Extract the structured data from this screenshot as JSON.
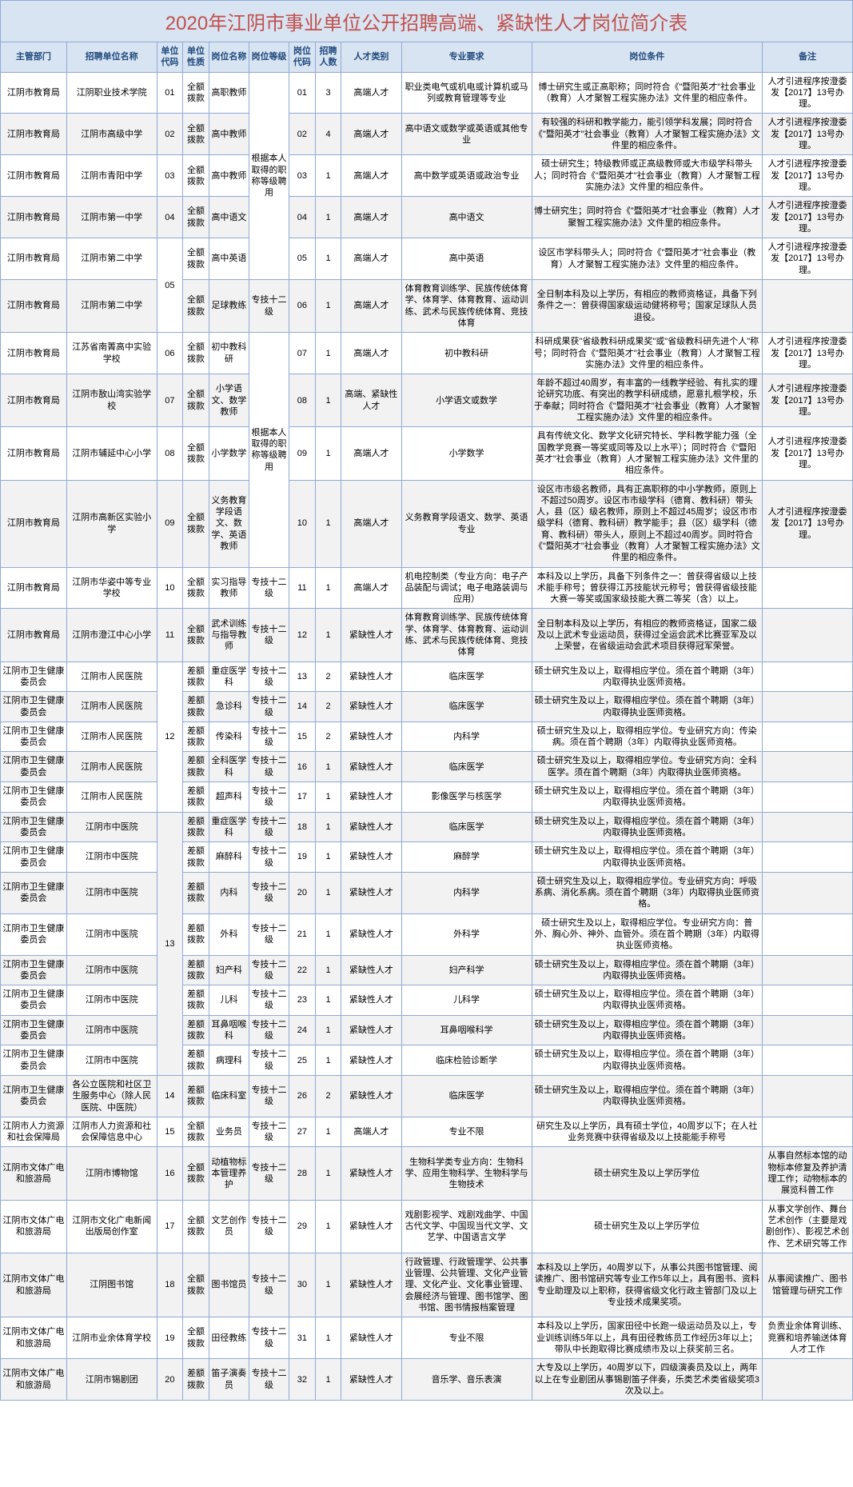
{
  "title": "2020年江阴市事业单位公开招聘高端、紧缺性人才岗位简介表",
  "headers": [
    "主管部门",
    "招聘单位名称",
    "单位代码",
    "单位性质",
    "岗位名称",
    "岗位等级",
    "岗位代码",
    "招聘人数",
    "人才类别",
    "专业要求",
    "岗位条件",
    "备注"
  ],
  "levels": {
    "a": "根据本人取得的职称等级聘用",
    "b": "根据本人取得的职称等级聘用"
  },
  "rows": [
    {
      "dept": "江阴市教育局",
      "unit": "江阴职业技术学院",
      "ucode": "01",
      "nature": "全额拨款",
      "pname": "高职教师",
      "pcode": "01",
      "num": "3",
      "talent": "高端人才",
      "major": "职业类电气或机电或计算机或马列或教育管理等专业",
      "cond": "博士研究生或正高职称；同时符合《\"暨阳英才\"社会事业（教育）人才聚智工程实施办法》文件里的相应条件。",
      "remark": "人才引进程序按澄委发【2017】13号办理。"
    },
    {
      "dept": "江阴市教育局",
      "unit": "江阴市高级中学",
      "ucode": "02",
      "nature": "全额拨款",
      "pname": "高中教师",
      "pcode": "02",
      "num": "4",
      "talent": "高端人才",
      "major": "高中语文或数学或英语或其他专业",
      "cond": "有较强的科研和教学能力，能引领学科发展；同时符合《\"暨阳英才\"社会事业（教育）人才聚智工程实施办法》文件里的相应条件。",
      "remark": "人才引进程序按澄委发【2017】13号办理。"
    },
    {
      "dept": "江阴市教育局",
      "unit": "江阴市青阳中学",
      "ucode": "03",
      "nature": "全额拨款",
      "pname": "高中教师",
      "pcode": "03",
      "num": "1",
      "talent": "高端人才",
      "major": "高中数学或英语或政治专业",
      "cond": "硕士研究生；特级教师或正高级教师或大市级学科带头人；同时符合《\"暨阳英才\"社会事业（教育）人才聚智工程实施办法》文件里的相应条件。",
      "remark": "人才引进程序按澄委发【2017】13号办理。"
    },
    {
      "dept": "江阴市教育局",
      "unit": "江阴市第一中学",
      "ucode": "04",
      "nature": "全额拨款",
      "pname": "高中语文",
      "pcode": "04",
      "num": "1",
      "talent": "高端人才",
      "major": "高中语文",
      "cond": "博士研究生；同时符合《\"暨阳英才\"社会事业（教育）人才聚智工程实施办法》文件里的相应条件。",
      "remark": "人才引进程序按澄委发【2017】13号办理。"
    },
    {
      "dept": "江阴市教育局",
      "unit": "江阴市第二中学",
      "ucode": "05",
      "nature": "全额拨款",
      "pname": "高中英语",
      "pcode": "05",
      "num": "1",
      "talent": "高端人才",
      "major": "高中英语",
      "cond": "设区市学科带头人；同时符合《\"暨阳英才\"社会事业（教育）人才聚智工程实施办法》文件里的相应条件。",
      "remark": "人才引进程序按澄委发【2017】13号办理。"
    },
    {
      "dept": "江阴市教育局",
      "unit": "江阴市第二中学",
      "ucode": "05",
      "nature": "全额拨款",
      "pname": "足球教练",
      "plevel": "专技十二级",
      "pcode": "06",
      "num": "1",
      "talent": "高端人才",
      "major": "体育教育训练学、民族传统体育学、体育学、体育教育、运动训练、武术与民族传统体育、竞技体育",
      "cond": "全日制本科及以上学历，有相应的教师资格证，具备下列条件之一：曾获得国家级运动健将称号；国家足球队人员退役。",
      "remark": ""
    },
    {
      "dept": "江阴市教育局",
      "unit": "江苏省南菁高中实验学校",
      "ucode": "06",
      "nature": "全额拨款",
      "pname": "初中教科研",
      "pcode": "07",
      "num": "1",
      "talent": "高端人才",
      "major": "初中教科研",
      "cond": "科研成果获\"省级教科研成果奖\"或\"省级教科研先进个人\"称号；同时符合《\"暨阳英才\"社会事业（教育）人才聚智工程实施办法》文件里的相应条件。",
      "remark": "人才引进程序按澄委发【2017】13号办理。"
    },
    {
      "dept": "江阴市教育局",
      "unit": "江阴市敔山湾实验学校",
      "ucode": "07",
      "nature": "全额拨款",
      "pname": "小学语文、数学教师",
      "pcode": "08",
      "num": "1",
      "talent": "高端、紧缺性人才",
      "major": "小学语文或数学",
      "cond": "年龄不超过40周岁，有丰富的一线教学经验、有扎实的理论研究功底、有突出的教学科研成绩，愿意扎根学校，乐于奉献；同时符合《\"暨阳英才\"社会事业（教育）人才聚智工程实施办法》文件里的相应条件。",
      "remark": "人才引进程序按澄委发【2017】13号办理。"
    },
    {
      "dept": "江阴市教育局",
      "unit": "江阴市辅延中心小学",
      "ucode": "08",
      "nature": "全额拨款",
      "pname": "小学数学",
      "pcode": "09",
      "num": "1",
      "talent": "高端人才",
      "major": "小学数学",
      "cond": "具有传统文化、数学文化研究特长、学科教学能力强（全国教学竞赛一等奖或同等及以上水平）；同时符合《\"暨阳英才\"社会事业（教育）人才聚智工程实施办法》文件里的相应条件。",
      "remark": "人才引进程序按澄委发【2017】13号办理。"
    },
    {
      "dept": "江阴市教育局",
      "unit": "江阴市高新区实验小学",
      "ucode": "09",
      "nature": "全额拨款",
      "pname": "义务教育学段语文、数学、英语教师",
      "pcode": "10",
      "num": "1",
      "talent": "高端人才",
      "major": "义务教育学段语文、数学、英语专业",
      "cond": "设区市市级名教师，具有正高职称的中小学教师，原则上不超过50周岁。设区市市级学科（德育、教科研）带头人，县（区）级名教师，原则上不超过45周岁；设区市市级学科（德育、教科研）教学能手；县（区）级学科（德育、教科研）带头人，原则上不超过40周岁。同时符合《\"暨阳英才\"社会事业（教育）人才聚智工程实施办法》文件里的相应条件。",
      "remark": "人才引进程序按澄委发【2017】13号办理。"
    },
    {
      "dept": "江阴市教育局",
      "unit": "江阴市华姿中等专业学校",
      "ucode": "10",
      "nature": "全额拨款",
      "pname": "实习指导教师",
      "plevel": "专技十二级",
      "pcode": "11",
      "num": "1",
      "talent": "高端人才",
      "major": "机电控制类（专业方向：电子产品装配与调试；电子电路装调与应用）",
      "cond": "本科及以上学历，具备下列条件之一：曾获得省级以上技术能手称号；曾获得江苏技能状元称号；曾获得省级技能大赛一等奖或国家级技能大赛二等奖（含）以上。",
      "remark": ""
    },
    {
      "dept": "江阴市教育局",
      "unit": "江阴市澄江中心小学",
      "ucode": "11",
      "nature": "全额拨款",
      "pname": "武术训练与指导教师",
      "plevel": "专技十二级",
      "pcode": "12",
      "num": "1",
      "talent": "紧缺性人才",
      "major": "体育教育训练学、民族传统体育学、体育学、体育教育、运动训练、武术与民族传统体育、竞技体育",
      "cond": "全日制本科及以上学历，有相应的教师资格证，国家二级及以上武术专业运动员，获得过全运会武术比赛亚军及以上荣誉，在省级运动会武术项目获得冠军荣誉。",
      "remark": ""
    },
    {
      "dept": "江阴市卫生健康委员会",
      "unit": "江阴市人民医院",
      "ucode": "12",
      "nature": "差额拨款",
      "pname": "重症医学科",
      "plevel": "专技十二级",
      "pcode": "13",
      "num": "2",
      "talent": "紧缺性人才",
      "major": "临床医学",
      "cond": "硕士研究生及以上，取得相应学位。须在首个聘期（3年）内取得执业医师资格。",
      "remark": ""
    },
    {
      "dept": "江阴市卫生健康委员会",
      "unit": "江阴市人民医院",
      "ucode": "12",
      "nature": "差额拨款",
      "pname": "急诊科",
      "plevel": "专技十二级",
      "pcode": "14",
      "num": "2",
      "talent": "紧缺性人才",
      "major": "临床医学",
      "cond": "硕士研究生及以上，取得相应学位。须在首个聘期（3年）内取得执业医师资格。",
      "remark": ""
    },
    {
      "dept": "江阴市卫生健康委员会",
      "unit": "江阴市人民医院",
      "ucode": "12",
      "nature": "差额拨款",
      "pname": "传染科",
      "plevel": "专技十二级",
      "pcode": "15",
      "num": "2",
      "talent": "紧缺性人才",
      "major": "内科学",
      "cond": "硕士研究生及以上，取得相应学位。专业研究方向：传染病。须在首个聘期（3年）内取得执业医师资格。",
      "remark": ""
    },
    {
      "dept": "江阴市卫生健康委员会",
      "unit": "江阴市人民医院",
      "ucode": "12",
      "nature": "差额拨款",
      "pname": "全科医学科",
      "plevel": "专技十二级",
      "pcode": "16",
      "num": "1",
      "talent": "紧缺性人才",
      "major": "临床医学",
      "cond": "硕士研究生及以上，取得相应学位。专业研究方向：全科医学。须在首个聘期（3年）内取得执业医师资格。",
      "remark": ""
    },
    {
      "dept": "江阴市卫生健康委员会",
      "unit": "江阴市人民医院",
      "ucode": "12",
      "nature": "差额拨款",
      "pname": "超声科",
      "plevel": "专技十二级",
      "pcode": "17",
      "num": "1",
      "talent": "紧缺性人才",
      "major": "影像医学与核医学",
      "cond": "硕士研究生及以上，取得相应学位。须在首个聘期（3年）内取得执业医师资格。",
      "remark": ""
    },
    {
      "dept": "江阴市卫生健康委员会",
      "unit": "江阴市中医院",
      "ucode": "13",
      "nature": "差额拨款",
      "pname": "重症医学科",
      "plevel": "专技十二级",
      "pcode": "18",
      "num": "1",
      "talent": "紧缺性人才",
      "major": "临床医学",
      "cond": "硕士研究生及以上，取得相应学位。须在首个聘期（3年）内取得执业医师资格。",
      "remark": ""
    },
    {
      "dept": "江阴市卫生健康委员会",
      "unit": "江阴市中医院",
      "ucode": "13",
      "nature": "差额拨款",
      "pname": "麻醉科",
      "plevel": "专技十二级",
      "pcode": "19",
      "num": "1",
      "talent": "紧缺性人才",
      "major": "麻醉学",
      "cond": "硕士研究生及以上，取得相应学位。须在首个聘期（3年）内取得执业医师资格。",
      "remark": ""
    },
    {
      "dept": "江阴市卫生健康委员会",
      "unit": "江阴市中医院",
      "ucode": "13",
      "nature": "差额拨款",
      "pname": "内科",
      "plevel": "专技十二级",
      "pcode": "20",
      "num": "1",
      "talent": "紧缺性人才",
      "major": "内科学",
      "cond": "硕士研究生及以上，取得相应学位。专业研究方向：呼吸系病、消化系病。须在首个聘期（3年）内取得执业医师资格。",
      "remark": ""
    },
    {
      "dept": "江阴市卫生健康委员会",
      "unit": "江阴市中医院",
      "ucode": "13",
      "nature": "差额拨款",
      "pname": "外科",
      "plevel": "专技十二级",
      "pcode": "21",
      "num": "1",
      "talent": "紧缺性人才",
      "major": "外科学",
      "cond": "硕士研究生及以上，取得相应学位。专业研究方向：普外、胸心外、神外、血管外。须在首个聘期（3年）内取得执业医师资格。",
      "remark": ""
    },
    {
      "dept": "江阴市卫生健康委员会",
      "unit": "江阴市中医院",
      "ucode": "13",
      "nature": "差额拨款",
      "pname": "妇产科",
      "plevel": "专技十二级",
      "pcode": "22",
      "num": "1",
      "talent": "紧缺性人才",
      "major": "妇产科学",
      "cond": "硕士研究生及以上，取得相应学位。须在首个聘期（3年）内取得执业医师资格。",
      "remark": ""
    },
    {
      "dept": "江阴市卫生健康委员会",
      "unit": "江阴市中医院",
      "ucode": "13",
      "nature": "差额拨款",
      "pname": "儿科",
      "plevel": "专技十二级",
      "pcode": "23",
      "num": "1",
      "talent": "紧缺性人才",
      "major": "儿科学",
      "cond": "硕士研究生及以上，取得相应学位。须在首个聘期（3年）内取得执业医师资格。",
      "remark": ""
    },
    {
      "dept": "江阴市卫生健康委员会",
      "unit": "江阴市中医院",
      "ucode": "13",
      "nature": "差额拨款",
      "pname": "耳鼻咽喉科",
      "plevel": "专技十二级",
      "pcode": "24",
      "num": "1",
      "talent": "紧缺性人才",
      "major": "耳鼻咽喉科学",
      "cond": "硕士研究生及以上，取得相应学位。须在首个聘期（3年）内取得执业医师资格。",
      "remark": ""
    },
    {
      "dept": "江阴市卫生健康委员会",
      "unit": "江阴市中医院",
      "ucode": "13",
      "nature": "差额拨款",
      "pname": "病理科",
      "plevel": "专技十二级",
      "pcode": "25",
      "num": "1",
      "talent": "紧缺性人才",
      "major": "临床检验诊断学",
      "cond": "硕士研究生及以上，取得相应学位。须在首个聘期（3年）内取得执业医师资格。",
      "remark": ""
    },
    {
      "dept": "江阴市卫生健康委员会",
      "unit": "各公立医院和社区卫生服务中心（除人民医院、中医院）",
      "ucode": "14",
      "nature": "差额拨款",
      "pname": "临床科室",
      "plevel": "专技十二级",
      "pcode": "26",
      "num": "2",
      "talent": "紧缺性人才",
      "major": "临床医学",
      "cond": "硕士研究生及以上，取得相应学位。须在首个聘期（3年）内取得执业医师资格。",
      "remark": ""
    },
    {
      "dept": "江阴市人力资源和社会保障局",
      "unit": "江阴市人力资源和社会保障信息中心",
      "ucode": "15",
      "nature": "全额拨款",
      "pname": "业务员",
      "plevel": "专技十二级",
      "pcode": "27",
      "num": "1",
      "talent": "高端人才",
      "major": "专业不限",
      "cond": "研究生及以上学历，具有硕士学位，40周岁以下；在人社业务竞赛中获得省级及以上技能能手称号",
      "remark": ""
    },
    {
      "dept": "江阴市文体广电和旅游局",
      "unit": "江阴市博物馆",
      "ucode": "16",
      "nature": "全额拨款",
      "pname": "动植物标本管理养护",
      "plevel": "专技十二级",
      "pcode": "28",
      "num": "1",
      "talent": "紧缺性人才",
      "major": "生物科学类专业方向：生物科学、应用生物科学、生物科学与生物技术",
      "cond": "硕士研究生及以上学历学位",
      "remark": "从事自然标本馆的动物标本修复及养护清理工作；动物标本的展览科普工作"
    },
    {
      "dept": "江阴市文体广电和旅游局",
      "unit": "江阴市文化广电新闻出版局创作室",
      "ucode": "17",
      "nature": "全额拨款",
      "pname": "文艺创作员",
      "plevel": "专技十二级",
      "pcode": "29",
      "num": "1",
      "talent": "紧缺性人才",
      "major": "戏剧影视学、戏剧戏曲学、中国古代文学、中国现当代文学、文艺学、中国语言文学",
      "cond": "硕士研究生及以上学历学位",
      "remark": "从事文学创作、舞台艺术创作（主要是戏剧创作）、影视艺术创作、艺术研究等工作"
    },
    {
      "dept": "江阴市文体广电和旅游局",
      "unit": "江阴图书馆",
      "ucode": "18",
      "nature": "全额拨款",
      "pname": "图书馆员",
      "plevel": "专技十二级",
      "pcode": "30",
      "num": "1",
      "talent": "紧缺性人才",
      "major": "行政管理、行政管理学、公共事业管理、公共管理、文化产业管理、文化产业、文化事业管理、会展经济与管理、图书馆学、图书馆、图书情报档案管理",
      "cond": "本科及以上学历，40周岁以下，从事公共图书馆管理、阅读推广、图书馆研究等专业工作5年以上，具有图书、资料专业助理及以上职称，获得省级文化行政主管部门及以上专业技术成果奖项。",
      "remark": "从事阅读推广、图书馆管理与研究工作"
    },
    {
      "dept": "江阴市文体广电和旅游局",
      "unit": "江阴市业余体育学校",
      "ucode": "19",
      "nature": "全额拨款",
      "pname": "田径教练",
      "plevel": "专技十二级",
      "pcode": "31",
      "num": "1",
      "talent": "紧缺性人才",
      "major": "专业不限",
      "cond": "本科及以上学历，国家田径中长跑一级运动员及以上，专业训练训练5年以上，具有田径教练员工作经历3年以上；带队中长跑取得比赛成绩市及以上获奖前三名。",
      "remark": "负责业余体育训练、竞赛和培养输送体育人才工作"
    },
    {
      "dept": "江阴市文体广电和旅游局",
      "unit": "江阴市锡剧团",
      "ucode": "20",
      "nature": "差额拨款",
      "pname": "笛子演奏员",
      "plevel": "专技十二级",
      "pcode": "32",
      "num": "1",
      "talent": "紧缺性人才",
      "major": "音乐学、音乐表演",
      "cond": "大专及以上学历，40周岁以下，四级演奏员及以上，两年以上在专业剧团从事锡剧笛子伴奏，乐类艺术类省级奖项3次及以上。",
      "remark": ""
    }
  ]
}
